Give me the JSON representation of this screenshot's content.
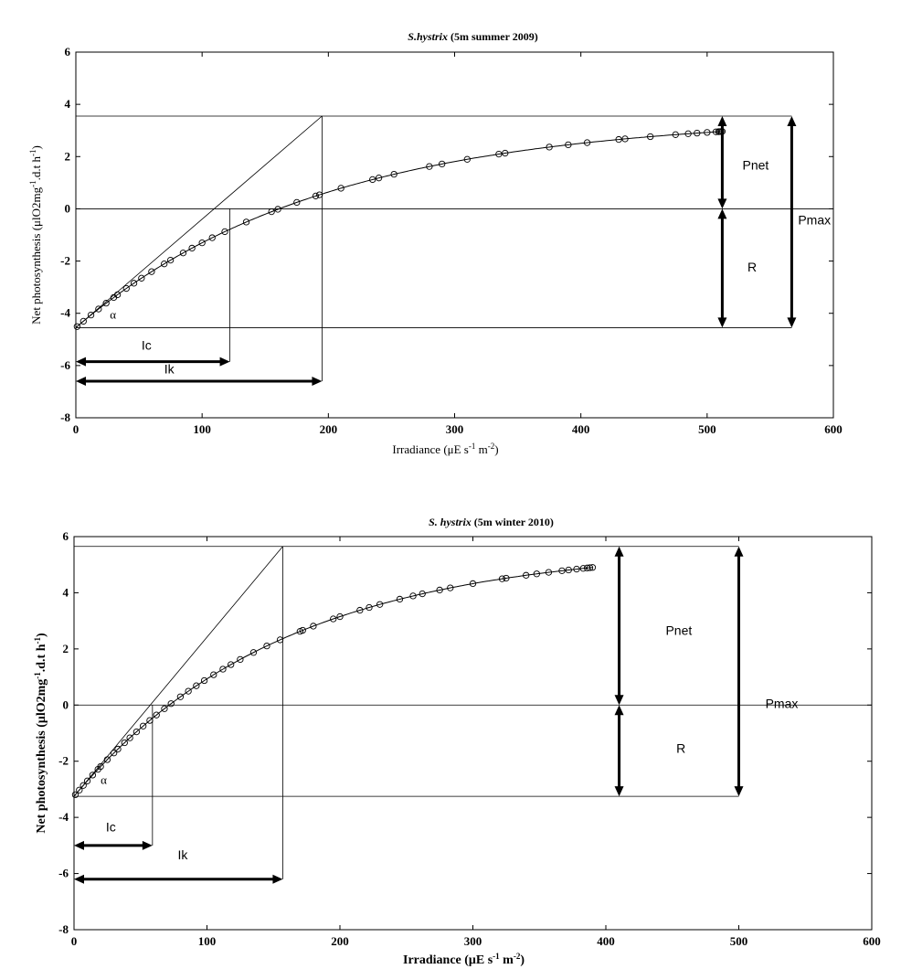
{
  "chart_data": [
    {
      "type": "scatter",
      "title_species": "S.hystrix",
      "title_rest": " (5m summer 2009)",
      "xlabel_prefix": "Irradiance (μE s",
      "xlabel_sup1": "-1",
      "xlabel_mid": " m",
      "xlabel_sup2": "-2",
      "xlabel_suffix": ")",
      "ylabel_prefix": "Net photosynthesis (μlO2mg",
      "ylabel_sup1": "-1",
      "ylabel_mid": ".d.t h",
      "ylabel_sup2": "-1",
      "ylabel_suffix": ")",
      "xlim": [
        0,
        600
      ],
      "ylim": [
        -8,
        6
      ],
      "xticks": [
        0,
        100,
        200,
        300,
        400,
        500,
        600
      ],
      "yticks": [
        -8,
        -6,
        -4,
        -2,
        0,
        2,
        4,
        6
      ],
      "pmax": 8.1,
      "resp": 4.55,
      "alpha_slope": 0.0415,
      "ic": 122,
      "ik": 195,
      "annotations": {
        "alpha": "α",
        "ic": "Ic",
        "ik": "Ik",
        "pnet": "Pnet",
        "r": "R",
        "pmax": "Pmax"
      },
      "arrow_x": {
        "pnet": 512,
        "pmax": 567,
        "ic_y": -5.85,
        "ik_y": -6.6
      },
      "label_pos": {
        "pnet": [
          528,
          1.5
        ],
        "r": [
          532,
          -2.4
        ],
        "pmax": [
          572,
          -0.6
        ],
        "ic": [
          52,
          -5.4
        ],
        "ik": [
          70,
          -6.3
        ],
        "alpha": [
          27,
          -4.2
        ]
      },
      "points_x": [
        1,
        6,
        12,
        18,
        24,
        30,
        33,
        40,
        46,
        52,
        60,
        70,
        75,
        85,
        92,
        100,
        108,
        118,
        135,
        155,
        160,
        175,
        190,
        193,
        210,
        235,
        240,
        252,
        280,
        290,
        310,
        335,
        340,
        375,
        390,
        405,
        430,
        435,
        455,
        475,
        485,
        492,
        500,
        507,
        509,
        510,
        511,
        512
      ],
      "line_x_end": 512
    },
    {
      "type": "scatter",
      "title_species": "S. hystrix",
      "title_rest": " (5m winter 2010)",
      "xlabel_prefix": "Irradiance (μE s",
      "xlabel_sup1": "-1",
      "xlabel_mid": " m",
      "xlabel_sup2": "-2",
      "xlabel_suffix": ")",
      "ylabel_prefix": "Net photosynthesis (μlO2mg",
      "ylabel_sup1": "-1",
      "ylabel_mid": ".d.t h",
      "ylabel_sup2": "-1",
      "ylabel_suffix": ")",
      "xlim": [
        0,
        600
      ],
      "ylim": [
        -8,
        6
      ],
      "xticks": [
        0,
        100,
        200,
        300,
        400,
        500,
        600
      ],
      "yticks": [
        -8,
        -6,
        -4,
        -2,
        0,
        2,
        4,
        6
      ],
      "pmax": 8.9,
      "resp": 3.25,
      "alpha_slope": 0.0565,
      "ic": 59,
      "ik": 157,
      "annotations": {
        "alpha": "α",
        "ic": "Ic",
        "ik": "Ik",
        "pnet": "Pnet",
        "r": "R",
        "pmax": "Pmax"
      },
      "arrow_x": {
        "pnet": 410,
        "pmax": 500,
        "ic_y": -5.0,
        "ik_y": -6.2
      },
      "label_pos": {
        "pnet": [
          445,
          2.5
        ],
        "r": [
          453,
          -1.7
        ],
        "pmax": [
          520,
          -0.1
        ],
        "ic": [
          24,
          -4.5
        ],
        "ik": [
          78,
          -5.5
        ],
        "alpha": [
          20,
          -2.8
        ]
      },
      "points_x": [
        1,
        4,
        7,
        10,
        14,
        18,
        20,
        25,
        30,
        33,
        38,
        42,
        47,
        52,
        57,
        62,
        68,
        73,
        80,
        86,
        92,
        98,
        105,
        112,
        118,
        125,
        135,
        145,
        155,
        170,
        172,
        180,
        195,
        200,
        215,
        222,
        230,
        245,
        255,
        262,
        275,
        283,
        300,
        322,
        325,
        340,
        348,
        357,
        367,
        372,
        378,
        383,
        386,
        388,
        390
      ],
      "line_x_end": 390
    }
  ]
}
